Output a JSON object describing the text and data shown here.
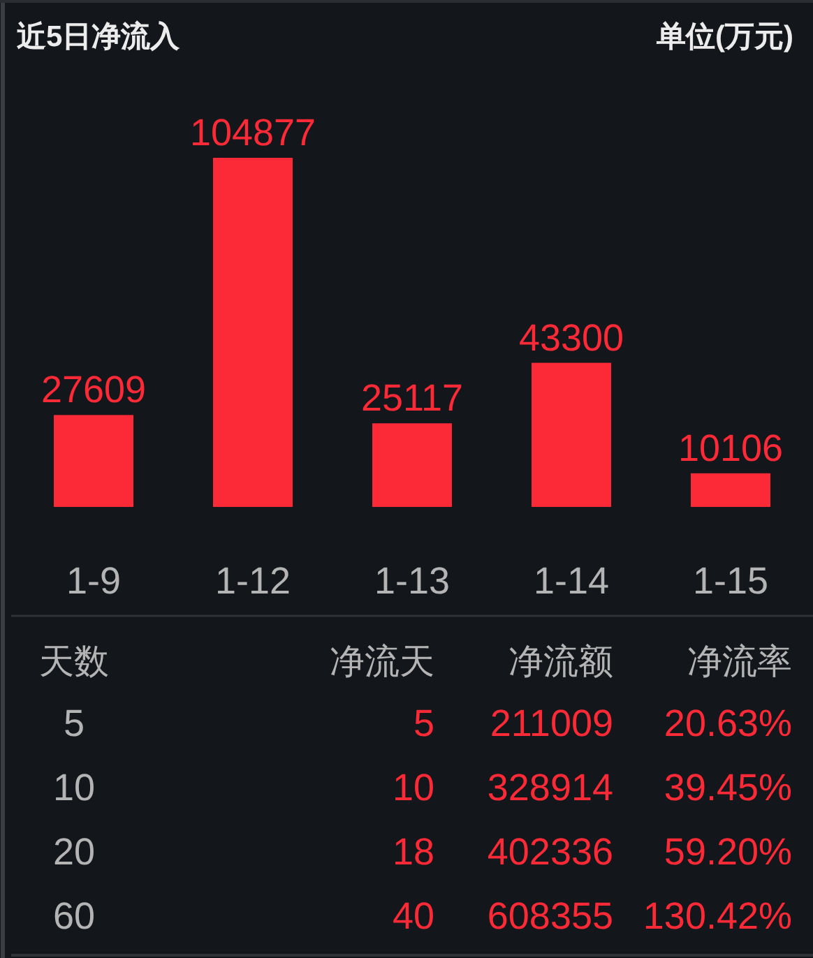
{
  "chart_data": [
    {
      "type": "bar",
      "title": "近5日净流入",
      "subtitle": "单位(万元)",
      "categories": [
        "1-9",
        "1-12",
        "1-13",
        "1-14",
        "1-15"
      ],
      "values": [
        27609,
        104877,
        25117,
        43300,
        10106
      ],
      "color": "#fc2a37",
      "data_labels": true
    },
    {
      "type": "other",
      "categories": [
        "天数",
        "净流天",
        "净流额",
        "净流率"
      ],
      "cell_labels": [
        [
          "5",
          "5",
          "211009",
          "20.63%"
        ],
        [
          "10",
          "10",
          "328914",
          "39.45%"
        ],
        [
          "20",
          "18",
          "402336",
          "59.20%"
        ],
        [
          "60",
          "40",
          "608355",
          "130.42%"
        ]
      ],
      "colors": [
        "#b4b4b4",
        "#fc2a37",
        "#fc2a37",
        "#fc2a37"
      ]
    }
  ]
}
